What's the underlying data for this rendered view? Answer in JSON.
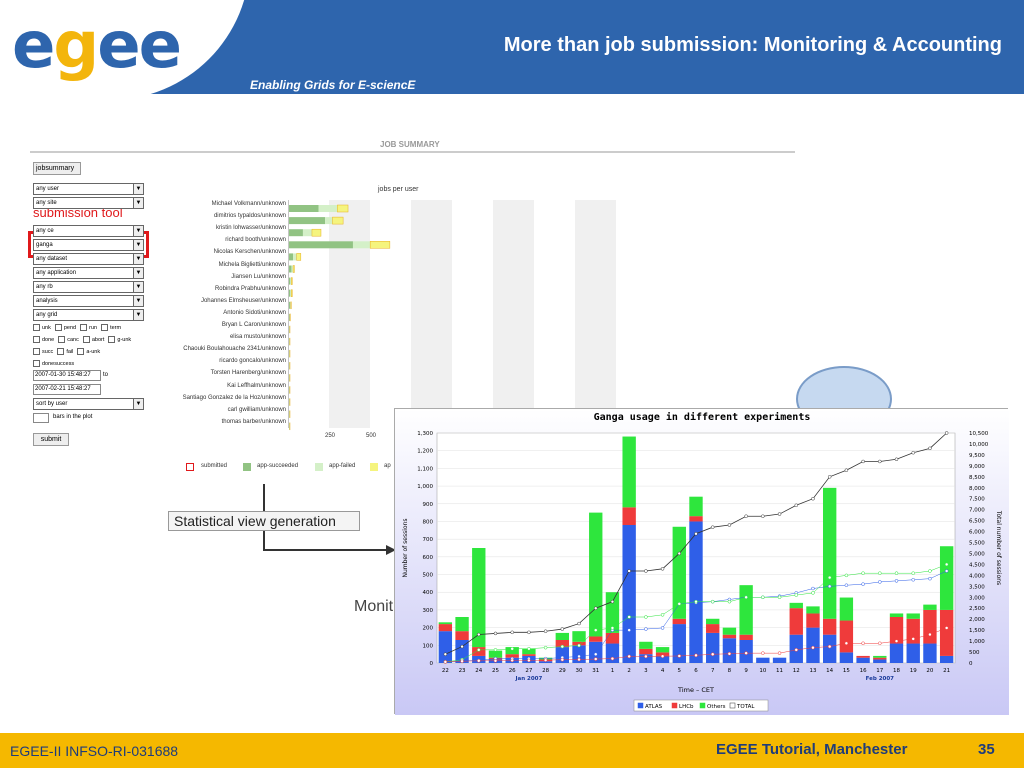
{
  "header": {
    "logo_letters": [
      "e",
      "g",
      "e",
      "e"
    ],
    "title": "More than job submission: Monitoring & Accounting",
    "subtitle": "Enabling Grids for E-sciencE",
    "colors": {
      "band": "#2e65ad",
      "logo_g": "#f3b50c",
      "logo_e": "#2e65ad"
    }
  },
  "footer": {
    "left": "EGEE-II INFSO-RI-031688",
    "middle": "EGEE Tutorial, Manchester",
    "page": "35",
    "color": "#f5b800"
  },
  "job_summary": {
    "heading": "JOB SUMMARY",
    "tab": "jobsummary",
    "filters": [
      {
        "label": "any user"
      },
      {
        "label": "any site"
      },
      {
        "label": "any ce"
      },
      {
        "label": "ganga"
      },
      {
        "label": "any dataset"
      },
      {
        "label": "any application"
      },
      {
        "label": "any rb"
      },
      {
        "label": "analysis"
      },
      {
        "label": "any grid"
      }
    ],
    "annotation": "submission tool",
    "status_checks": [
      [
        "unk",
        "pend",
        "run",
        "term"
      ],
      [
        "done",
        "canc",
        "abort",
        "g-unk"
      ],
      [
        "succ",
        "fail",
        "a-unk"
      ],
      [
        "donesuccess"
      ]
    ],
    "date_from": "2007-01-30 15:48:27",
    "date_to_label": "to",
    "date_to": "2007-02-21 15:48:27",
    "sort": "sort by user",
    "bars_label": "bars in the plot",
    "submit": "submit"
  },
  "jobs_per_user": {
    "title": "jobs per user",
    "users": [
      "Michael Volkmann/unknown",
      "dimitrios typaldos/unknown",
      "kristin lohwasser/unknown",
      "richard booth/unknown",
      "Nicolas Kerschen/unknown",
      "Michela Biglietti/unknown",
      "Jiansen Lu/unknown",
      "Robindra Prabhu/unknown",
      "Johannes Elmsheuser/unknown",
      "Antonio Sidoti/unknown",
      "Bryan L Caron/unknown",
      "elisa musto/unknown",
      "Chaouki Boulahouache 2341/unknown",
      "ricardo goncalo/unknown",
      "Torsten Harenberg/unknown",
      "Kai Leffhalm/unknown",
      "Santiago Gonzalez de la Hoz/unknown",
      "carl gwilliam/unknown",
      "thomas barber/unknown"
    ],
    "succeeded": [
      180,
      220,
      85,
      390,
      25,
      15,
      8,
      8,
      6,
      3,
      2,
      2,
      2,
      2,
      2,
      2,
      2,
      2,
      2
    ],
    "failed": [
      115,
      45,
      55,
      105,
      22,
      10,
      6,
      6,
      5,
      3,
      3,
      3,
      3,
      3,
      3,
      3,
      3,
      3,
      3
    ],
    "other": [
      65,
      65,
      55,
      120,
      25,
      8,
      6,
      6,
      3,
      2,
      1,
      1,
      1,
      1,
      1,
      1,
      1,
      1,
      1
    ],
    "ticks": [
      "250",
      "500"
    ],
    "legend": [
      "submitted",
      "app-succeeded",
      "app-failed",
      "ap"
    ]
  },
  "stat_view_label": "Statistical view generation",
  "monit_label": "Monit",
  "chart_data": {
    "type": "bar",
    "title": "Ganga usage in different experiments",
    "xlabel": "Time – CET",
    "ylabel": "Number of sessions",
    "y2label": "Total number of sessions",
    "ylim": [
      0,
      1300
    ],
    "y_ticks": [
      "0",
      "100",
      "200",
      "300",
      "400",
      "500",
      "600",
      "700",
      "800",
      "900",
      "1,000",
      "1,100",
      "1,200",
      "1,300"
    ],
    "y2lim": [
      0,
      10500
    ],
    "y2_ticks": [
      "0",
      "500",
      "1,000",
      "1,500",
      "2,000",
      "2,500",
      "3,000",
      "3,500",
      "4,000",
      "4,500",
      "5,000",
      "5,500",
      "6,000",
      "6,500",
      "7,000",
      "7,500",
      "8,000",
      "8,500",
      "9,000",
      "9,500",
      "10,000",
      "10,500"
    ],
    "categories": [
      "22",
      "23",
      "24",
      "25",
      "26",
      "27",
      "28",
      "29",
      "30",
      "31",
      "1",
      "2",
      "3",
      "4",
      "5",
      "6",
      "7",
      "8",
      "9",
      "10",
      "11",
      "12",
      "13",
      "14",
      "15",
      "16",
      "17",
      "18",
      "19",
      "20",
      "21"
    ],
    "month_labels": [
      "Jan 2007",
      "Feb 2007"
    ],
    "series": [
      {
        "name": "ATLAS",
        "color": "#2f5fe8",
        "values": [
          180,
          130,
          40,
          20,
          30,
          40,
          10,
          90,
          100,
          120,
          110,
          780,
          50,
          40,
          220,
          800,
          170,
          140,
          130,
          30,
          30,
          160,
          200,
          160,
          60,
          30,
          20,
          110,
          110,
          110,
          40
        ]
      },
      {
        "name": "LHCb",
        "color": "#ef3b3b",
        "values": [
          40,
          50,
          50,
          10,
          20,
          10,
          10,
          40,
          20,
          30,
          60,
          100,
          30,
          20,
          30,
          30,
          50,
          20,
          30,
          0,
          0,
          150,
          80,
          90,
          180,
          10,
          10,
          150,
          140,
          190,
          260
        ]
      },
      {
        "name": "Others",
        "color": "#2ee63d",
        "values": [
          10,
          80,
          560,
          40,
          40,
          30,
          10,
          40,
          60,
          700,
          230,
          400,
          40,
          30,
          520,
          110,
          30,
          40,
          280,
          0,
          0,
          30,
          40,
          740,
          130,
          0,
          10,
          20,
          30,
          30,
          360
        ]
      }
    ],
    "lines": [
      {
        "name": "TOTAL",
        "color": "#333333",
        "values": [
          400,
          750,
          1300,
          1350,
          1400,
          1400,
          1450,
          1550,
          1800,
          2500,
          2800,
          4200,
          4200,
          4300,
          5000,
          5900,
          6200,
          6300,
          6700,
          6700,
          6800,
          7200,
          7500,
          8500,
          8800,
          9200,
          9200,
          9300,
          9600,
          9800,
          10500
        ]
      },
      {
        "name": "ATLAS cum",
        "color": "#2f5fe8",
        "values": [
          50,
          100,
          120,
          200,
          200,
          200,
          200,
          250,
          300,
          400,
          1500,
          1500,
          1550,
          1600,
          2700,
          2750,
          2800,
          2900,
          3000,
          3000,
          3050,
          3200,
          3400,
          3500,
          3550,
          3600,
          3700,
          3750,
          3800,
          3850,
          4200
        ]
      },
      {
        "name": "Others cum",
        "color": "#2ee63d",
        "values": [
          50,
          150,
          600,
          600,
          650,
          650,
          700,
          750,
          800,
          1500,
          1600,
          2100,
          2100,
          2200,
          2700,
          2800,
          2800,
          2800,
          3000,
          3000,
          3000,
          3100,
          3200,
          3900,
          4000,
          4100,
          4100,
          4100,
          4100,
          4200,
          4500
        ]
      },
      {
        "name": "LHCb cum",
        "color": "#ef3b3b",
        "values": [
          50,
          80,
          100,
          100,
          120,
          120,
          130,
          150,
          160,
          180,
          200,
          300,
          300,
          310,
          320,
          350,
          400,
          420,
          450,
          450,
          450,
          600,
          700,
          750,
          900,
          900,
          900,
          1000,
          1100,
          1300,
          1600
        ]
      }
    ],
    "legend": [
      "ATLAS",
      "LHCb",
      "Others",
      "TOTAL"
    ],
    "legend_placement": "bottom-right"
  }
}
